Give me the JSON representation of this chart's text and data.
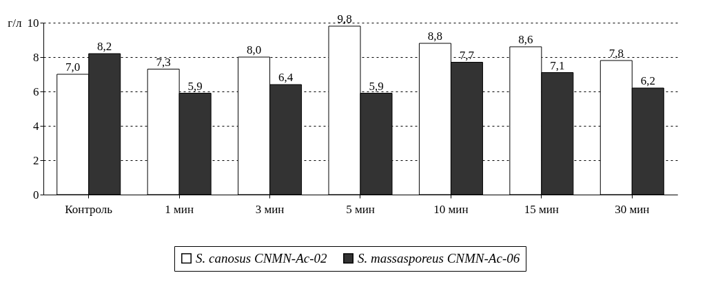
{
  "chart_data": {
    "type": "bar",
    "ylabel": "г/л",
    "categories": [
      "Контроль",
      "1 мин",
      "3 мин",
      "5 мин",
      "10 мин",
      "15 мин",
      "30 мин"
    ],
    "series": [
      {
        "name": "S. canosus CNMN-Ac-02",
        "color": "#ffffff",
        "values": [
          7.0,
          7.3,
          8.0,
          9.8,
          8.8,
          8.6,
          7.8
        ],
        "value_labels": [
          "7,0",
          "7,3",
          "8,0",
          "9,8",
          "8,8",
          "8,6",
          "7,8"
        ]
      },
      {
        "name": "S. massasporeus CNMN-Ac-06",
        "color": "#333333",
        "values": [
          8.2,
          5.9,
          6.4,
          5.9,
          7.7,
          7.1,
          6.2
        ],
        "value_labels": [
          "8,2",
          "5,9",
          "6,4",
          "5,9",
          "7,7",
          "7,1",
          "6,2"
        ]
      }
    ],
    "ylim": [
      0,
      10
    ],
    "yticks": [
      0,
      2,
      4,
      6,
      8,
      10
    ],
    "grid": "y",
    "legend": "bottom"
  }
}
